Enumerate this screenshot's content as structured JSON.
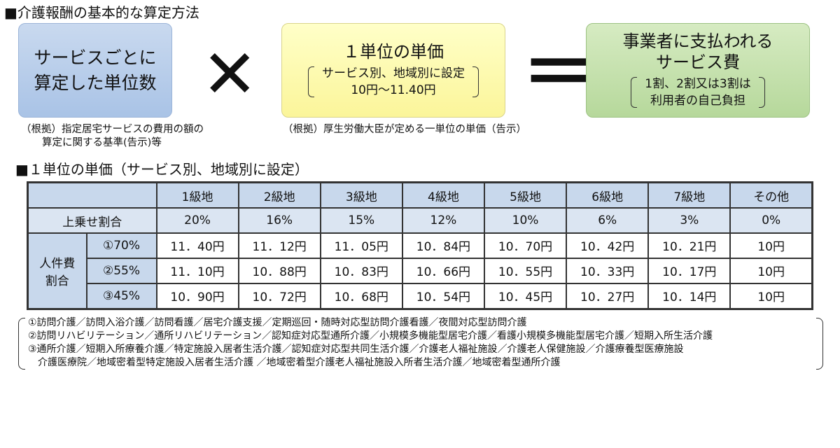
{
  "heading1": "■介護報酬の基本的な算定方法",
  "formula": {
    "units_box": {
      "line1": "サービスごとに",
      "line2": "算定した単位数"
    },
    "times_symbol": "✕",
    "price_box": {
      "title": "１単位の単価",
      "sub1": "サービス別、地域別に設定",
      "sub2": "10円～11.40円"
    },
    "equals_symbol": "＝",
    "fee_box": {
      "title1": "事業者に支払われる",
      "title2": "サービス費",
      "sub1": "1割、2割又は3割は",
      "sub2": "利用者の自己負担"
    },
    "basis_units": {
      "line1": "（根拠）指定居宅サービスの費用の額の",
      "line2": "算定に関する基準(告示)等"
    },
    "basis_price": "（根拠）厚生労働大臣が定める一単位の単価（告示）"
  },
  "heading2": "■１単位の単価（サービス別、地域別に設定）",
  "table": {
    "columns": [
      "1級地",
      "2級地",
      "3級地",
      "4級地",
      "5級地",
      "6級地",
      "7級地",
      "その他"
    ],
    "ratio_label": "上乗せ割合",
    "ratio_values": [
      "20%",
      "16%",
      "15%",
      "12%",
      "10%",
      "6%",
      "3%",
      "0%"
    ],
    "group_label_1": "人件費",
    "group_label_2": "割合",
    "rows": [
      {
        "label": "①70%",
        "values": [
          "11．40円",
          "11．12円",
          "11．05円",
          "10．84円",
          "10．70円",
          "10．42円",
          "10．21円",
          "10円"
        ]
      },
      {
        "label": "②55%",
        "values": [
          "11．10円",
          "10．88円",
          "10．83円",
          "10．66円",
          "10．55円",
          "10．33円",
          "10．17円",
          "10円"
        ]
      },
      {
        "label": "③45%",
        "values": [
          "10．90円",
          "10．72円",
          "10．68円",
          "10．54円",
          "10．45円",
          "10．27円",
          "10．14円",
          "10円"
        ]
      }
    ]
  },
  "notes": [
    "①訪問介護／訪問入浴介護／訪問看護／居宅介護支援／定期巡回・随時対応型訪問介護看護／夜間対応型訪問介護",
    "②訪問リハビリテーション／通所リハビリテーション／認知症対応型通所介護／小規模多機能型居宅介護／看護小規模多機能型居宅介護／短期入所生活介護",
    "③通所介護／短期入所療養介護／特定施設入居者生活介護／認知症対応型共同生活介護／介護老人福祉施設／介護老人保健施設／介護療養型医療施設",
    "　介護医療院／地域密着型特定施設入居者生活介護 ／地域密着型介護老人福祉施設入所者生活介護／地域密着型通所介護"
  ]
}
